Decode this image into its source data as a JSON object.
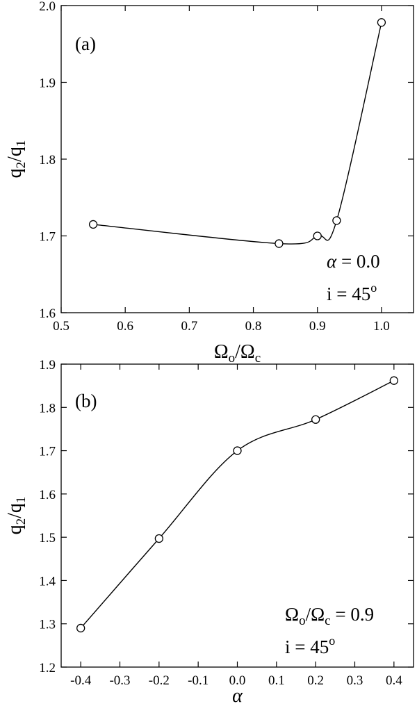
{
  "chart_data": [
    {
      "type": "line",
      "panel_label": "(a)",
      "xlabel": {
        "main": "Ω",
        "sub": "o",
        "mid": "/Ω",
        "sub2": "c"
      },
      "ylabel": {
        "main": "q",
        "sub": "2",
        "mid": "/q",
        "sub2": "1"
      },
      "xlim": [
        0.5,
        1.05
      ],
      "ylim": [
        1.6,
        2.0
      ],
      "xticks": [
        0.5,
        0.6,
        0.7,
        0.8,
        0.9,
        1.0
      ],
      "xtick_labels": [
        "0.5",
        "0.6",
        "0.7",
        "0.8",
        "0.9",
        "1.0"
      ],
      "yticks": [
        1.6,
        1.7,
        1.8,
        1.9,
        2.0
      ],
      "ytick_labels": [
        "1.6",
        "1.7",
        "1.8",
        "1.9",
        "2.0"
      ],
      "points": [
        {
          "x": 0.55,
          "y": 1.715
        },
        {
          "x": 0.84,
          "y": 1.69
        },
        {
          "x": 0.9,
          "y": 1.7
        },
        {
          "x": 0.93,
          "y": 1.72
        },
        {
          "x": 1.0,
          "y": 1.978
        }
      ],
      "annotation": {
        "line1": "α = 0.0",
        "line2_main": "i = 45",
        "line2_sup": "o"
      }
    },
    {
      "type": "line",
      "panel_label": "(b)",
      "xlabel": {
        "main": "α"
      },
      "ylabel": {
        "main": "q",
        "sub": "2",
        "mid": "/q",
        "sub2": "1"
      },
      "xlim": [
        -0.45,
        0.45
      ],
      "ylim": [
        1.2,
        1.9
      ],
      "xticks": [
        -0.4,
        -0.3,
        -0.2,
        -0.1,
        0.0,
        0.1,
        0.2,
        0.3,
        0.4
      ],
      "xtick_labels": [
        "-0.4",
        "-0.3",
        "-0.2",
        "-0.1",
        "0.0",
        "0.1",
        "0.2",
        "0.3",
        "0.4"
      ],
      "yticks": [
        1.2,
        1.3,
        1.4,
        1.5,
        1.6,
        1.7,
        1.8,
        1.9
      ],
      "ytick_labels": [
        "1.2",
        "1.3",
        "1.4",
        "1.5",
        "1.6",
        "1.7",
        "1.8",
        "1.9"
      ],
      "points": [
        {
          "x": -0.4,
          "y": 1.29
        },
        {
          "x": -0.2,
          "y": 1.497
        },
        {
          "x": 0.0,
          "y": 1.7
        },
        {
          "x": 0.2,
          "y": 1.772
        },
        {
          "x": 0.4,
          "y": 1.862
        }
      ],
      "annotation": {
        "line1_main": "Ω",
        "line1_sub": "o",
        "line1_mid": "/Ω",
        "line1_sub2": "c",
        "line1_end": " = 0.9",
        "line2_main": "i = 45",
        "line2_sup": "o"
      }
    }
  ]
}
